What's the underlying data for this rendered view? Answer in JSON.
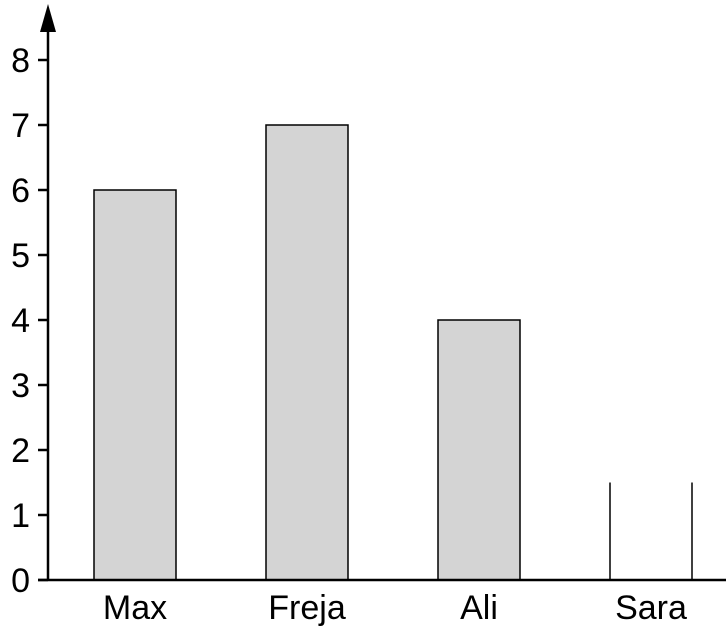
{
  "chart_data": {
    "type": "bar",
    "title": "",
    "xlabel": "",
    "ylabel": "",
    "categories": [
      "Max",
      "Freja",
      "Ali",
      "Sara"
    ],
    "values": [
      6,
      7,
      4,
      null
    ],
    "partial_bars": [
      {
        "category": "Sara",
        "note": "open bar outline only",
        "visible_height": 1.5
      }
    ],
    "ylim": [
      0,
      8
    ],
    "yticks": [
      "0",
      "1",
      "2",
      "3",
      "4",
      "5",
      "6",
      "7",
      "8"
    ],
    "grid": false,
    "bar_color": "#d4d4d4",
    "bar_edge_color": "#000000"
  }
}
